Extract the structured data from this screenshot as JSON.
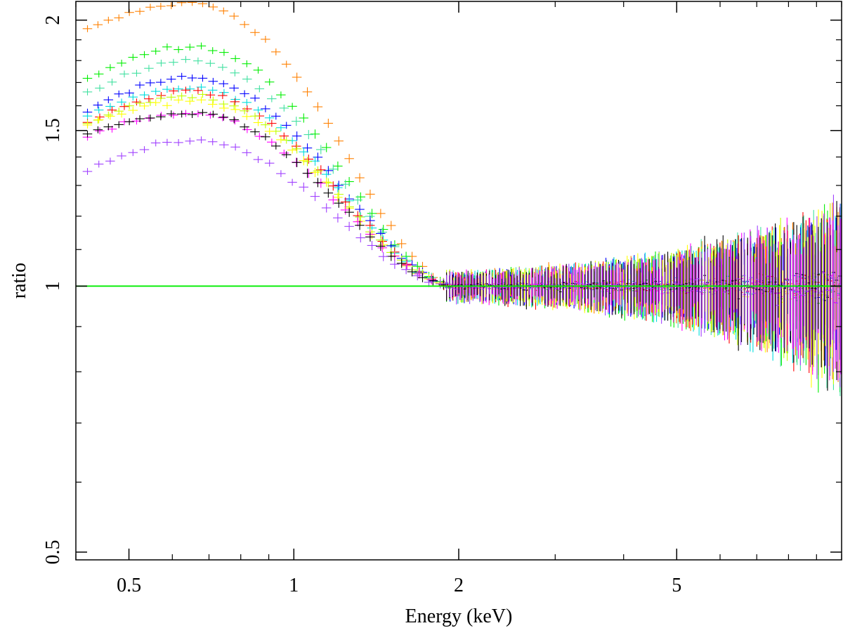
{
  "chart_data": {
    "type": "scatter",
    "title": "",
    "xlabel": "Energy (keV)",
    "ylabel": "ratio",
    "x_scale": "log",
    "y_scale": "log",
    "xlim": [
      0.4,
      10
    ],
    "ylim": [
      0.49,
      2.1
    ],
    "grid": false,
    "legend": "none",
    "x_major_ticks": [
      {
        "value": 0.5,
        "label": "0.5"
      },
      {
        "value": 1,
        "label": "1"
      },
      {
        "value": 2,
        "label": "2"
      },
      {
        "value": 5,
        "label": "5"
      }
    ],
    "x_minor_ticks": [
      0.4,
      0.6,
      0.7,
      0.8,
      0.9,
      3,
      4,
      6,
      7,
      8,
      9,
      10
    ],
    "y_major_ticks": [
      {
        "value": 0.5,
        "label": "0.5"
      },
      {
        "value": 1,
        "label": "1"
      },
      {
        "value": 1.5,
        "label": "1.5"
      },
      {
        "value": 2,
        "label": "2"
      }
    ],
    "y_minor_ticks": [
      0.6,
      0.7,
      0.8,
      0.9,
      1.1,
      1.2,
      1.3,
      1.4,
      1.6,
      1.7,
      1.8,
      1.9
    ],
    "reference_line": {
      "y": 1.0,
      "color": "#00ee00"
    },
    "series": [
      {
        "color": "#ff8000",
        "peak": 2.09,
        "start": 1.95
      },
      {
        "color": "#00ee00",
        "peak": 1.87,
        "start": 1.71
      },
      {
        "color": "#40e0a0",
        "peak": 1.8,
        "start": 1.65
      },
      {
        "color": "#0000ff",
        "peak": 1.72,
        "start": 1.58
      },
      {
        "color": "#00dddd",
        "peak": 1.68,
        "start": 1.56
      },
      {
        "color": "#ff0000",
        "peak": 1.66,
        "start": 1.54
      },
      {
        "color": "#c0ff00",
        "peak": 1.64,
        "start": 1.53
      },
      {
        "color": "#ffff00",
        "peak": 1.62,
        "start": 1.52
      },
      {
        "color": "#ff00ff",
        "peak": 1.57,
        "start": 1.48
      },
      {
        "color": "#000000",
        "peak": 1.57,
        "start": 1.49
      },
      {
        "color": "#a040ff",
        "peak": 1.46,
        "start": 1.35
      }
    ]
  }
}
